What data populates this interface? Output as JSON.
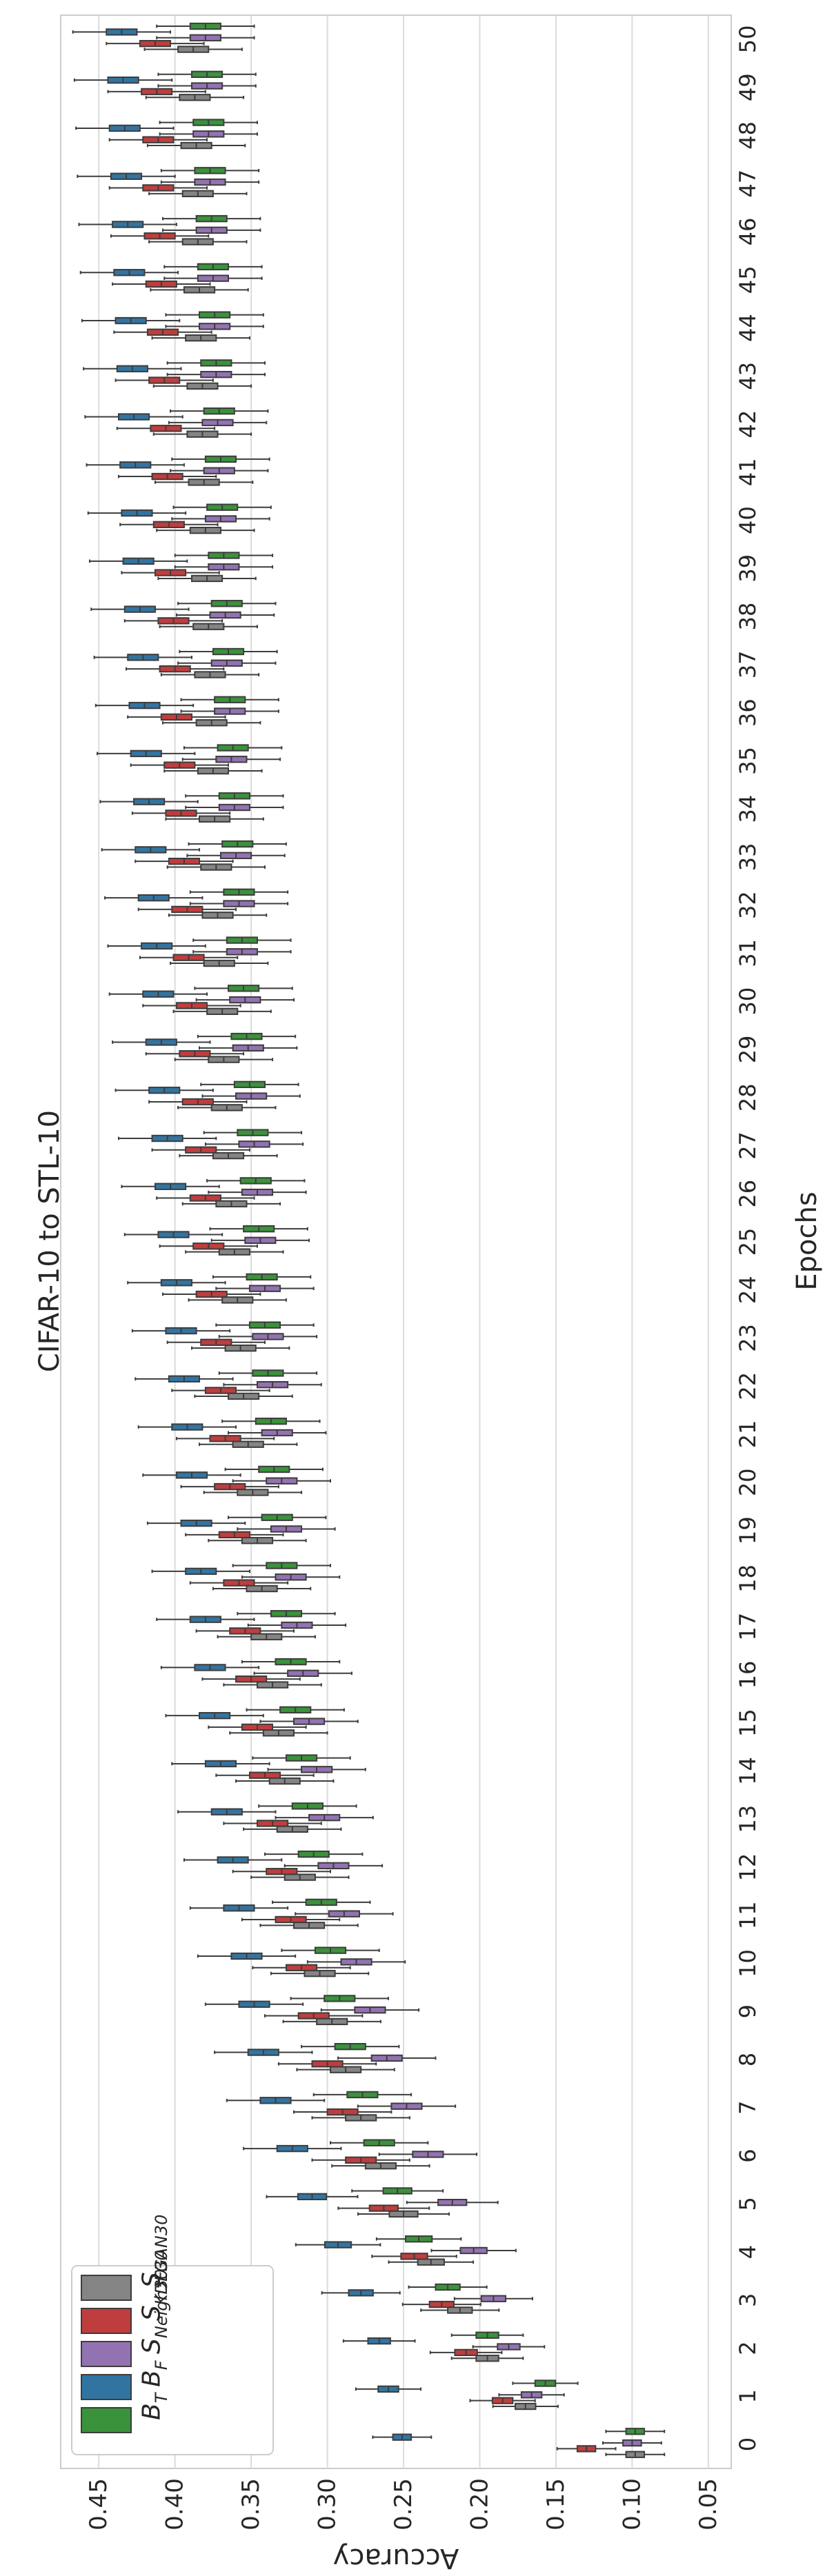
{
  "chart_data": {
    "type": "boxplot",
    "orientation": "rotated-90",
    "title": "CIFAR-10 to STL-10",
    "xlabel": "Epochs",
    "ylabel": "Accuracy",
    "ylim": [
      0.035,
      0.475
    ],
    "yticks": [
      "0.45",
      "0.40",
      "0.35",
      "0.30",
      "0.25",
      "0.20",
      "0.15",
      "0.10",
      "0.05"
    ],
    "ytick_values": [
      0.45,
      0.4,
      0.35,
      0.3,
      0.25,
      0.2,
      0.15,
      0.1,
      0.05
    ],
    "categories": [
      "0",
      "1",
      "2",
      "3",
      "4",
      "5",
      "6",
      "7",
      "8",
      "9",
      "10",
      "11",
      "12",
      "13",
      "14",
      "15",
      "16",
      "17",
      "18",
      "19",
      "20",
      "21",
      "22",
      "23",
      "24",
      "25",
      "26",
      "27",
      "28",
      "29",
      "30",
      "31",
      "32",
      "33",
      "34",
      "35",
      "36",
      "37",
      "38",
      "39",
      "40",
      "41",
      "42",
      "43",
      "44",
      "45",
      "46",
      "47",
      "48",
      "49",
      "50"
    ],
    "grid": true,
    "legend_position": "bottom-left",
    "series": [
      {
        "name": "B_T",
        "base": "B",
        "sub": "T",
        "color": "#3a923a",
        "medians": [
          0.098,
          0.157,
          0.195,
          0.221,
          0.24,
          0.254,
          0.266,
          0.277,
          0.285,
          0.292,
          0.298,
          0.304,
          0.309,
          0.313,
          0.317,
          0.321,
          0.324,
          0.327,
          0.33,
          0.333,
          0.335,
          0.337,
          0.339,
          0.341,
          0.343,
          0.345,
          0.347,
          0.349,
          0.351,
          0.353,
          0.355,
          0.356,
          0.358,
          0.359,
          0.361,
          0.362,
          0.364,
          0.365,
          0.366,
          0.368,
          0.369,
          0.37,
          0.371,
          0.373,
          0.374,
          0.375,
          0.376,
          0.377,
          0.378,
          0.379,
          0.38
        ]
      },
      {
        "name": "B_F",
        "base": "B",
        "sub": "F",
        "color": "#3274a1",
        "medians": [
          0.251,
          0.26,
          0.266,
          0.278,
          0.293,
          0.31,
          0.323,
          0.334,
          0.342,
          0.348,
          0.353,
          0.358,
          0.362,
          0.366,
          0.37,
          0.374,
          0.377,
          0.38,
          0.383,
          0.386,
          0.389,
          0.392,
          0.394,
          0.396,
          0.399,
          0.401,
          0.403,
          0.405,
          0.407,
          0.409,
          0.411,
          0.412,
          0.414,
          0.416,
          0.417,
          0.419,
          0.42,
          0.421,
          0.423,
          0.424,
          0.425,
          0.426,
          0.427,
          0.428,
          0.429,
          0.43,
          0.431,
          0.432,
          0.433,
          0.434,
          0.435
        ]
      },
      {
        "name": "S_Neigh30",
        "base": "S",
        "sub": "Neigh30",
        "color": "#9372b2",
        "medians": [
          0.1,
          0.166,
          0.181,
          0.191,
          0.204,
          0.218,
          0.234,
          0.248,
          0.261,
          0.272,
          0.281,
          0.289,
          0.296,
          0.302,
          0.307,
          0.312,
          0.316,
          0.32,
          0.324,
          0.327,
          0.33,
          0.333,
          0.336,
          0.339,
          0.341,
          0.344,
          0.346,
          0.348,
          0.35,
          0.352,
          0.354,
          0.356,
          0.358,
          0.36,
          0.361,
          0.363,
          0.364,
          0.366,
          0.367,
          0.368,
          0.37,
          0.371,
          0.372,
          0.373,
          0.374,
          0.375,
          0.376,
          0.377,
          0.378,
          0.379,
          0.38
        ]
      },
      {
        "name": "S_KDE30",
        "base": "S",
        "sub": "KDE30",
        "color": "#c03d3e",
        "medians": [
          0.13,
          0.185,
          0.209,
          0.225,
          0.243,
          0.263,
          0.278,
          0.29,
          0.3,
          0.309,
          0.317,
          0.324,
          0.33,
          0.336,
          0.341,
          0.346,
          0.35,
          0.354,
          0.358,
          0.361,
          0.364,
          0.367,
          0.37,
          0.373,
          0.376,
          0.378,
          0.38,
          0.383,
          0.385,
          0.387,
          0.389,
          0.391,
          0.392,
          0.394,
          0.396,
          0.397,
          0.399,
          0.4,
          0.401,
          0.403,
          0.404,
          0.405,
          0.406,
          0.407,
          0.408,
          0.409,
          0.41,
          0.411,
          0.411,
          0.412,
          0.413
        ]
      },
      {
        "name": "S_GAN30",
        "base": "S",
        "sub": "GAN30",
        "color": "#848484",
        "medians": [
          0.098,
          0.17,
          0.195,
          0.213,
          0.232,
          0.25,
          0.265,
          0.278,
          0.288,
          0.297,
          0.305,
          0.312,
          0.318,
          0.323,
          0.328,
          0.332,
          0.336,
          0.34,
          0.343,
          0.346,
          0.349,
          0.352,
          0.355,
          0.357,
          0.359,
          0.361,
          0.363,
          0.365,
          0.366,
          0.368,
          0.369,
          0.371,
          0.372,
          0.373,
          0.374,
          0.375,
          0.376,
          0.377,
          0.378,
          0.379,
          0.38,
          0.381,
          0.382,
          0.382,
          0.383,
          0.384,
          0.385,
          0.385,
          0.386,
          0.387,
          0.388
        ]
      }
    ]
  }
}
